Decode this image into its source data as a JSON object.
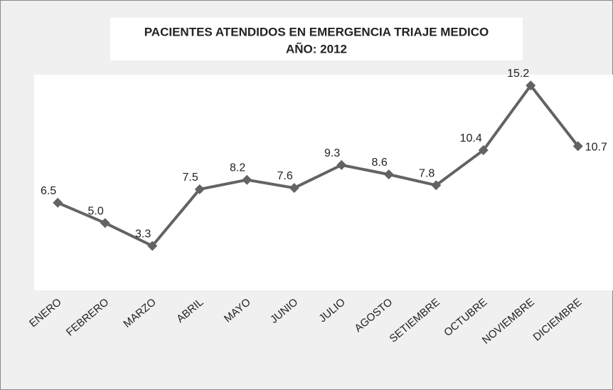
{
  "chart_data": {
    "type": "line",
    "title": "PACIENTES ATENDIDOS EN EMERGENCIA TRIAJE MEDICO",
    "subtitle": "AÑO: 2012",
    "categories": [
      "ENERO",
      "FEBRERO",
      "MARZO",
      "ABRIL",
      "MAYO",
      "JUNIO",
      "JULIO",
      "AGOSTO",
      "SETIEMBRE",
      "OCTUBRE",
      "NOVIEMBRE",
      "DICIEMBRE"
    ],
    "values": [
      6.5,
      5.0,
      3.3,
      7.5,
      8.2,
      7.6,
      9.3,
      8.6,
      7.8,
      10.4,
      15.2,
      10.7
    ],
    "value_labels": [
      "6.5",
      "5.0",
      "3.3",
      "7.5",
      "8.2",
      "7.6",
      "9.3",
      "8.6",
      "7.8",
      "10.4",
      "15.2",
      "10.7"
    ],
    "color": "#636363",
    "ylim": [
      0,
      16
    ]
  }
}
